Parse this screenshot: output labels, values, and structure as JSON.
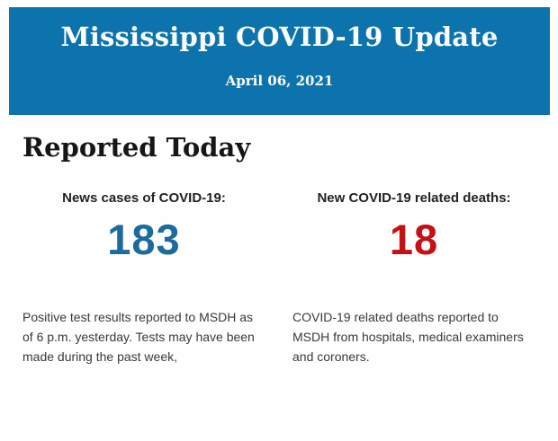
{
  "header": {
    "title": "Mississippi COVID-19 Update",
    "date": "April 06, 2021",
    "bg_color": "#0d73ad",
    "text_color": "#fbfdfd"
  },
  "section": {
    "title": "Reported Today"
  },
  "stats": [
    {
      "label": "News cases of COVID-19:",
      "value": "183",
      "value_color": "#1c6b9d",
      "description": "Positive test results reported to MSDH as of 6 p.m. yesterday. Tests may have been made during the past week,"
    },
    {
      "label": "New COVID-19 related deaths:",
      "value": "18",
      "value_color": "#c31114",
      "description": "COVID-19 related deaths reported to MSDH from hospitals, medical examiners and coroners."
    }
  ]
}
